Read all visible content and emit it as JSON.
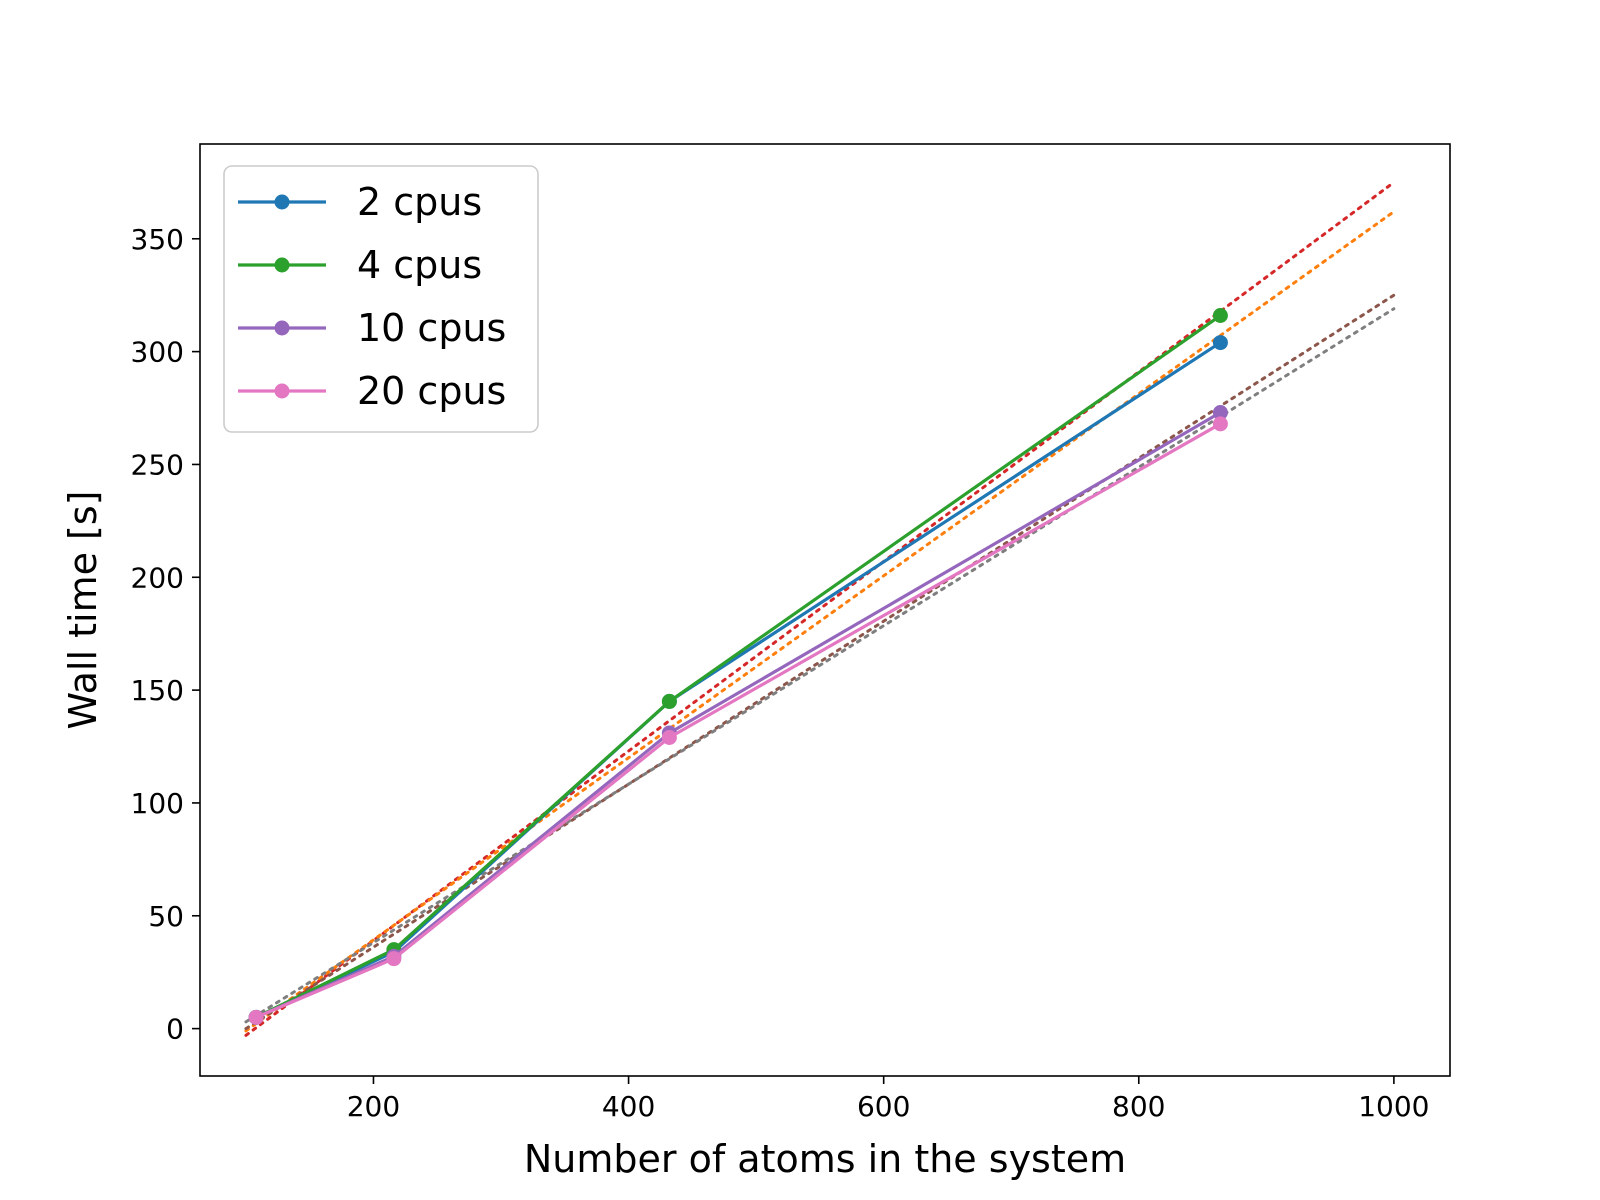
{
  "chart_data": {
    "type": "line",
    "xlabel": "Number of atoms in the system",
    "ylabel": "Wall time [s]",
    "xlim": [
      64,
      1044
    ],
    "ylim": [
      -21,
      392
    ],
    "xticks": [
      200,
      400,
      600,
      800,
      1000
    ],
    "yticks": [
      0,
      50,
      100,
      150,
      200,
      250,
      300,
      350
    ],
    "grid": false,
    "legend_position": "top-left",
    "series": [
      {
        "name": "2 cpus",
        "color": "#1f77b4",
        "x": [
          108,
          216,
          432,
          864
        ],
        "y": [
          5,
          34,
          145,
          304
        ]
      },
      {
        "name": "4 cpus",
        "color": "#2ca02c",
        "x": [
          108,
          216,
          432,
          864
        ],
        "y": [
          5,
          35,
          145,
          316
        ]
      },
      {
        "name": "10 cpus",
        "color": "#9467bd",
        "x": [
          108,
          216,
          432,
          864
        ],
        "y": [
          5,
          32,
          131,
          273
        ]
      },
      {
        "name": "20 cpus",
        "color": "#e377c2",
        "x": [
          108,
          216,
          432,
          864
        ],
        "y": [
          5,
          31,
          129,
          268
        ]
      }
    ],
    "fit_lines": [
      {
        "color": "#d62728",
        "x": [
          100,
          1000
        ],
        "y": [
          -3,
          375
        ]
      },
      {
        "color": "#ff7f0e",
        "x": [
          100,
          1000
        ],
        "y": [
          -1,
          362
        ]
      },
      {
        "color": "#8c564b",
        "x": [
          100,
          1000
        ],
        "y": [
          0,
          325
        ]
      },
      {
        "color": "#7f7f7f",
        "x": [
          100,
          1000
        ],
        "y": [
          3,
          319
        ]
      }
    ]
  }
}
